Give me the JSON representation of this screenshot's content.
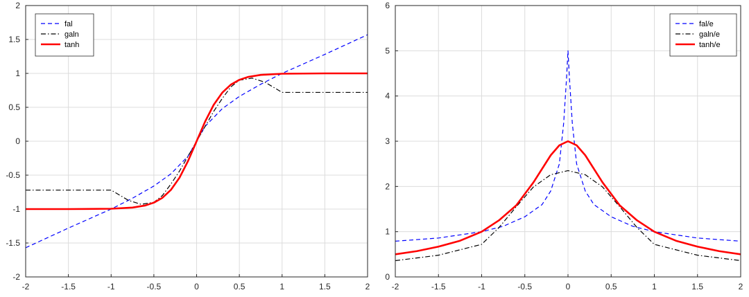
{
  "chart_data": [
    {
      "type": "line",
      "title": "",
      "xlabel": "",
      "ylabel": "",
      "xlim": [
        -2,
        2
      ],
      "ylim": [
        -2,
        2
      ],
      "grid": true,
      "legend_position": "top-left",
      "x_ticks": [
        "-2",
        "-1.5",
        "-1",
        "-0.5",
        "0",
        "0.5",
        "1",
        "1.5",
        "2"
      ],
      "y_ticks": [
        "-2",
        "-1.5",
        "-1",
        "-0.5",
        "0",
        "0.5",
        "1",
        "1.5",
        "2"
      ],
      "series": [
        {
          "name": "fal",
          "color": "#0000ff",
          "style": "dashed",
          "x": [
            -2,
            -1.5,
            -1,
            -0.75,
            -0.5,
            -0.3,
            -0.1,
            0,
            0.1,
            0.3,
            0.5,
            0.75,
            1,
            1.5,
            2
          ],
          "y": [
            -1.57,
            -1.28,
            -1.0,
            -0.84,
            -0.66,
            -0.48,
            -0.22,
            0,
            0.22,
            0.48,
            0.66,
            0.84,
            1.0,
            1.28,
            1.57
          ]
        },
        {
          "name": "galn",
          "color": "#000000",
          "style": "dashdot",
          "x": [
            -2,
            -1,
            -0.8,
            -0.65,
            -0.5,
            -0.4,
            -0.3,
            -0.2,
            -0.1,
            0,
            0.1,
            0.2,
            0.3,
            0.4,
            0.5,
            0.65,
            0.8,
            1,
            2
          ],
          "y": [
            -0.72,
            -0.72,
            -0.87,
            -0.93,
            -0.9,
            -0.8,
            -0.63,
            -0.44,
            -0.22,
            0,
            0.22,
            0.44,
            0.63,
            0.8,
            0.9,
            0.93,
            0.87,
            0.72,
            0.72
          ]
        },
        {
          "name": "tanh",
          "color": "#ff0000",
          "style": "solid",
          "x": [
            -2,
            -1.5,
            -1,
            -0.75,
            -0.6,
            -0.5,
            -0.4,
            -0.3,
            -0.2,
            -0.1,
            0,
            0.1,
            0.2,
            0.3,
            0.4,
            0.5,
            0.6,
            0.75,
            1,
            1.5,
            2
          ],
          "y": [
            -1.0,
            -1.0,
            -0.995,
            -0.978,
            -0.947,
            -0.905,
            -0.834,
            -0.716,
            -0.537,
            -0.291,
            0,
            0.291,
            0.537,
            0.716,
            0.834,
            0.905,
            0.947,
            0.978,
            0.995,
            1.0,
            1.0
          ]
        }
      ]
    },
    {
      "type": "line",
      "title": "",
      "xlabel": "",
      "ylabel": "",
      "xlim": [
        -2,
        2
      ],
      "ylim": [
        0,
        6
      ],
      "grid": true,
      "legend_position": "top-right",
      "x_ticks": [
        "-2",
        "-1.5",
        "-1",
        "-0.5",
        "0",
        "0.5",
        "1",
        "1.5",
        "2"
      ],
      "y_ticks": [
        "0",
        "1",
        "2",
        "3",
        "4",
        "5",
        "6"
      ],
      "series": [
        {
          "name": "fal/e",
          "color": "#0000ff",
          "style": "dashed",
          "x": [
            -2,
            -1.5,
            -1,
            -0.75,
            -0.5,
            -0.3,
            -0.2,
            -0.1,
            -0.05,
            -0.02,
            0,
            0.02,
            0.05,
            0.1,
            0.2,
            0.3,
            0.5,
            0.75,
            1,
            1.5,
            2
          ],
          "y": [
            0.79,
            0.86,
            1.0,
            1.12,
            1.33,
            1.6,
            1.9,
            2.5,
            3.4,
            4.3,
            5.0,
            4.3,
            3.4,
            2.5,
            1.9,
            1.6,
            1.33,
            1.12,
            1.0,
            0.86,
            0.79
          ],
          "annotations": []
        },
        {
          "name": "galn/e",
          "color": "#000000",
          "style": "dashdot",
          "x": [
            -2,
            -1.5,
            -1,
            -0.8,
            -0.6,
            -0.4,
            -0.2,
            0,
            0.2,
            0.4,
            0.6,
            0.8,
            1,
            1.5,
            2
          ],
          "y": [
            0.36,
            0.48,
            0.72,
            1.09,
            1.55,
            1.99,
            2.26,
            2.35,
            2.26,
            1.99,
            1.55,
            1.09,
            0.72,
            0.48,
            0.36
          ]
        },
        {
          "name": "tanh/e",
          "color": "#ff0000",
          "style": "solid",
          "x": [
            -2,
            -1.75,
            -1.5,
            -1.25,
            -1,
            -0.8,
            -0.6,
            -0.4,
            -0.2,
            -0.1,
            0,
            0.1,
            0.2,
            0.4,
            0.6,
            0.8,
            1,
            1.25,
            1.5,
            1.75,
            2
          ],
          "y": [
            0.5,
            0.57,
            0.67,
            0.8,
            1.0,
            1.25,
            1.58,
            2.09,
            2.69,
            2.91,
            3.0,
            2.91,
            2.69,
            2.09,
            1.58,
            1.25,
            1.0,
            0.8,
            0.67,
            0.57,
            0.5
          ]
        }
      ]
    }
  ]
}
